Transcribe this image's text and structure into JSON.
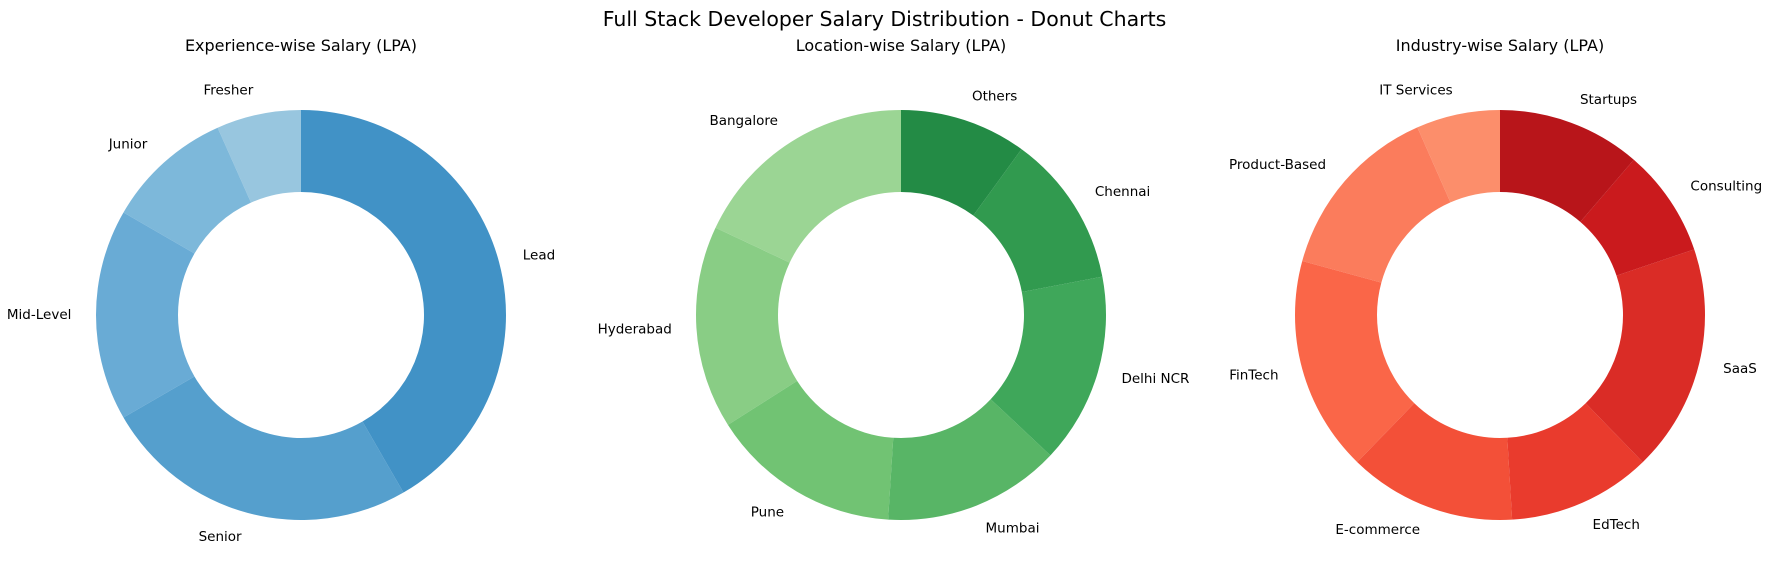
{
  "figure_title": "Full Stack Developer Salary Distribution - Donut Charts",
  "chart_data": [
    {
      "type": "pie",
      "subtype": "donut",
      "title": "Experience-wise Salary (LPA)",
      "categories": [
        "Fresher",
        "Junior",
        "Mid-Level",
        "Senior",
        "Lead"
      ],
      "values": [
        4,
        6,
        10,
        15,
        25
      ],
      "colors": [
        "#98c6df",
        "#7db8da",
        "#69abd5",
        "#559fcd",
        "#4192c6"
      ],
      "start_angle_deg": 90,
      "direction": "counterclockwise"
    },
    {
      "type": "pie",
      "subtype": "donut",
      "title": "Location-wise Salary (LPA)",
      "categories": [
        "Bangalore",
        "Hyderabad",
        "Pune",
        "Mumbai",
        "Delhi NCR",
        "Chennai",
        "Others"
      ],
      "values": [
        18,
        16,
        15,
        14,
        15,
        12,
        10
      ],
      "colors": [
        "#9bd594",
        "#89cd85",
        "#71c373",
        "#58b566",
        "#3fa75a",
        "#319a4f",
        "#238b45"
      ],
      "start_angle_deg": 90,
      "direction": "counterclockwise"
    },
    {
      "type": "pie",
      "subtype": "donut",
      "title": "Industry-wise Salary (LPA)",
      "categories": [
        "IT Services",
        "Product-Based",
        "FinTech",
        "E-commerce",
        "EdTech",
        "SaaS",
        "Consulting",
        "Startups"
      ],
      "values": [
        7,
        15,
        18,
        14,
        12,
        19,
        9,
        12
      ],
      "colors": [
        "#fc8e6b",
        "#fb7c5c",
        "#fa6648",
        "#f35038",
        "#e93b2d",
        "#da2c26",
        "#ca1a1d",
        "#b8151a"
      ],
      "start_angle_deg": 90,
      "direction": "counterclockwise"
    }
  ]
}
